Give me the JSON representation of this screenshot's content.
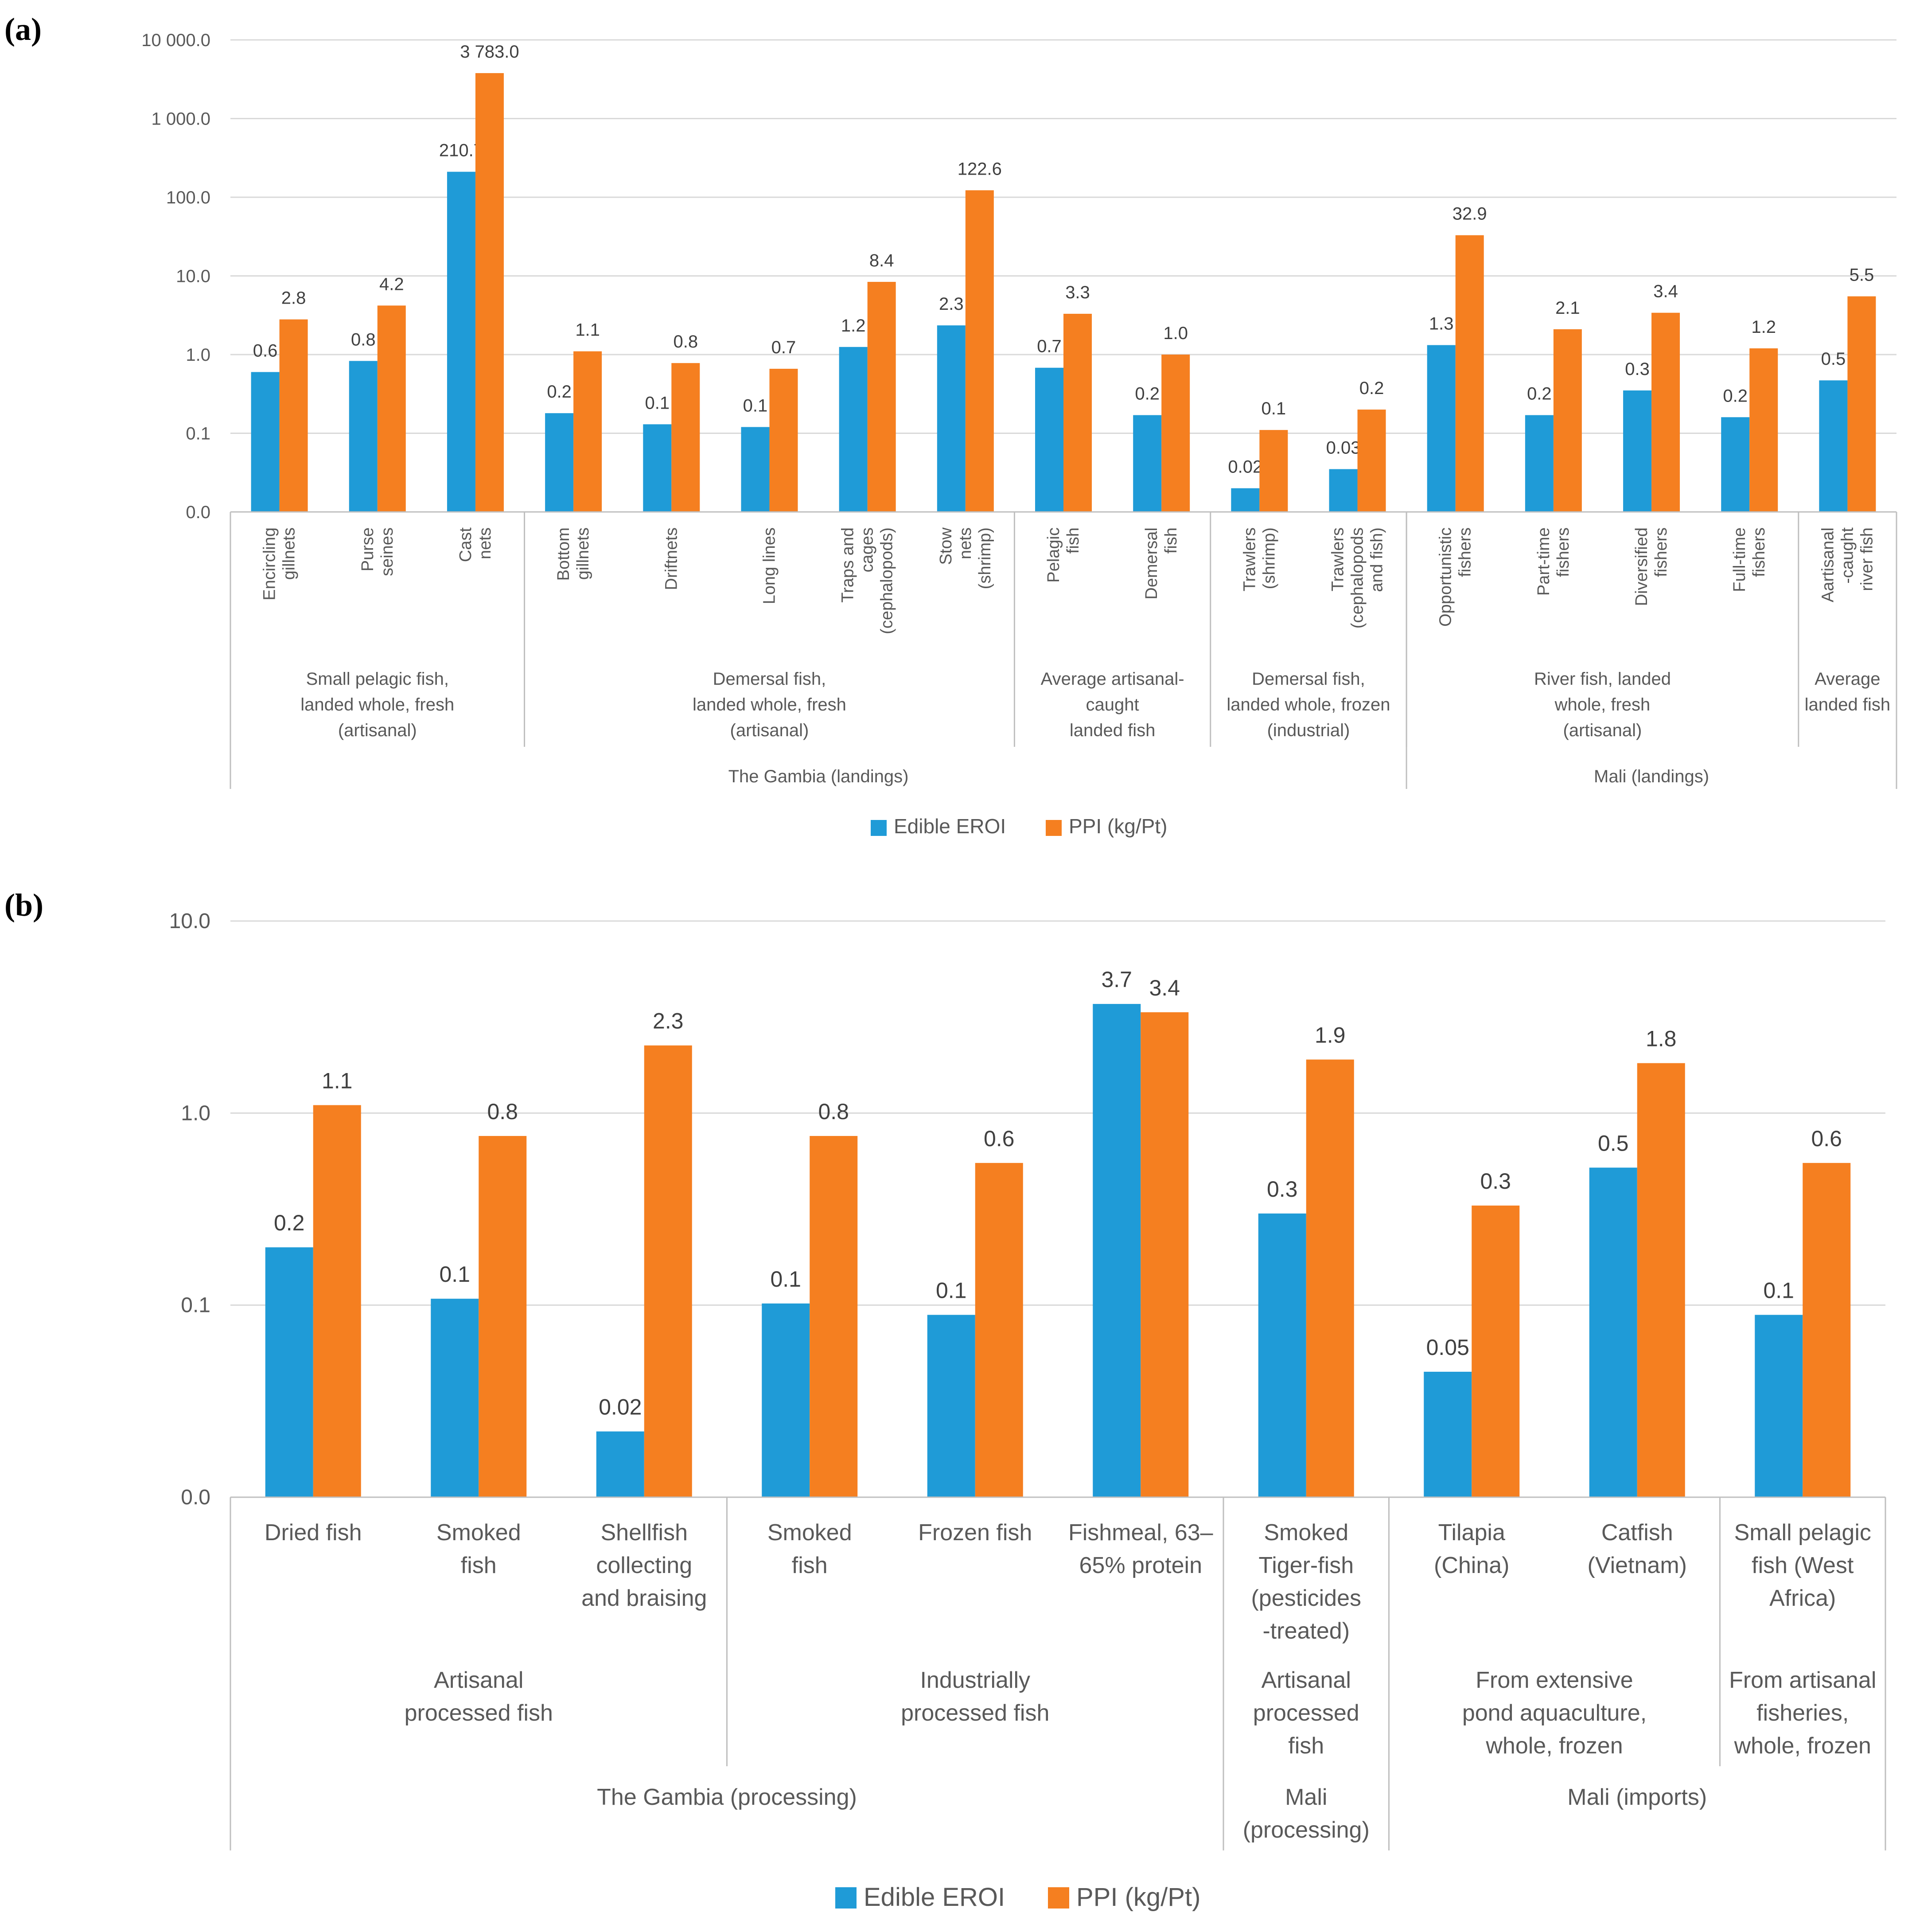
{
  "chart_data": [
    {
      "panel": "(a)",
      "type": "bar",
      "yscale": "log",
      "ylim": [
        0.01,
        10000
      ],
      "yticks": [
        {
          "value": 10000,
          "label": "10 000.0"
        },
        {
          "value": 1000,
          "label": "1 000.0"
        },
        {
          "value": 100,
          "label": "100.0"
        },
        {
          "value": 10,
          "label": "10.0"
        },
        {
          "value": 1,
          "label": "1.0"
        },
        {
          "value": 0.1,
          "label": "0.1"
        },
        {
          "value": 0.01,
          "label": "0.0"
        }
      ],
      "colors": {
        "Edible EROI": "#1f9bd7",
        "PPI (kg/Pt)": "#f57f20"
      },
      "categories": [
        {
          "lines": [
            "Encircling",
            "gillnets"
          ]
        },
        {
          "lines": [
            "Purse",
            "seines"
          ]
        },
        {
          "lines": [
            "Cast",
            "nets"
          ]
        },
        {
          "lines": [
            "Bottom",
            "gillnets"
          ]
        },
        {
          "lines": [
            "Driftnets"
          ]
        },
        {
          "lines": [
            "Long lines"
          ]
        },
        {
          "lines": [
            "Traps and",
            "cages",
            "(cephalopods)"
          ]
        },
        {
          "lines": [
            "Stow",
            "nets",
            "(shrimp)"
          ]
        },
        {
          "lines": [
            "Pelagic",
            "fish"
          ]
        },
        {
          "lines": [
            "Demersal",
            "fish"
          ]
        },
        {
          "lines": [
            "Trawlers",
            "(shrimp)"
          ]
        },
        {
          "lines": [
            "Trawlers",
            "(cephalopods",
            "and fish)"
          ]
        },
        {
          "lines": [
            "Opportunistic",
            "fishers"
          ]
        },
        {
          "lines": [
            "Part-time",
            "fishers"
          ]
        },
        {
          "lines": [
            "Diversified",
            "fishers"
          ]
        },
        {
          "lines": [
            "Full-time",
            "fishers"
          ]
        },
        {
          "lines": [
            "Aartisanal",
            "-caught",
            "river fish"
          ]
        }
      ],
      "series": [
        {
          "name": "Edible EROI",
          "values": [
            0.6,
            0.83,
            210.7,
            0.18,
            0.13,
            0.12,
            1.25,
            2.35,
            0.68,
            0.17,
            0.02,
            0.035,
            1.32,
            0.17,
            0.35,
            0.16,
            0.47
          ],
          "labels": [
            "0.6",
            "0.8",
            "210.7",
            "0.2",
            "0.1",
            "0.1",
            "1.2",
            "2.3",
            "0.7",
            "0.2",
            "0.02",
            "0.03",
            "1.3",
            "0.2",
            "0.3",
            "0.2",
            "0.5"
          ]
        },
        {
          "name": "PPI (kg/Pt)",
          "values": [
            2.8,
            4.2,
            3783,
            1.1,
            0.78,
            0.66,
            8.4,
            122.6,
            3.3,
            1.0,
            0.11,
            0.2,
            32.9,
            2.1,
            3.4,
            1.2,
            5.5
          ],
          "labels": [
            "2.8",
            "4.2",
            "3 783.0",
            "1.1",
            "0.8",
            "0.7",
            "8.4",
            "122.6",
            "3.3",
            "1.0",
            "0.1",
            "0.2",
            "32.9",
            "2.1",
            "3.4",
            "1.2",
            "5.5"
          ]
        }
      ],
      "groups": [
        {
          "lines": [
            "Small pelagic fish,",
            "landed whole, fresh",
            "(artisanal)"
          ],
          "start": 0,
          "end": 2
        },
        {
          "lines": [
            "Demersal fish,",
            "landed whole, fresh",
            "(artisanal)"
          ],
          "start": 3,
          "end": 7
        },
        {
          "lines": [
            "Average artisanal-",
            "caught",
            "landed fish"
          ],
          "start": 8,
          "end": 9
        },
        {
          "lines": [
            "Demersal fish,",
            "landed  whole, frozen",
            "(industrial)"
          ],
          "start": 10,
          "end": 11
        },
        {
          "lines": [
            "River fish, landed",
            "whole, fresh",
            "(artisanal)"
          ],
          "start": 12,
          "end": 15
        },
        {
          "lines": [
            "Average",
            "landed fish"
          ],
          "start": 16,
          "end": 16
        }
      ],
      "supergroups": [
        {
          "label": "The Gambia (landings)",
          "start": 0,
          "end": 11
        },
        {
          "label": "Mali (landings)",
          "start": 12,
          "end": 16
        }
      ]
    },
    {
      "panel": "(b)",
      "type": "bar",
      "yscale": "log",
      "ylim": [
        0.01,
        10
      ],
      "yticks": [
        {
          "value": 10,
          "label": "10.0"
        },
        {
          "value": 1,
          "label": "1.0"
        },
        {
          "value": 0.1,
          "label": "0.1"
        },
        {
          "value": 0.01,
          "label": "0.0"
        }
      ],
      "colors": {
        "Edible EROI": "#1f9bd7",
        "PPI (kg/Pt)": "#f57f20"
      },
      "categories": [
        {
          "lines": [
            "Dried fish"
          ]
        },
        {
          "lines": [
            "Smoked",
            "fish"
          ]
        },
        {
          "lines": [
            "Shellfish",
            "collecting",
            "and braising"
          ]
        },
        {
          "lines": [
            "Smoked",
            "fish"
          ]
        },
        {
          "lines": [
            "Frozen fish"
          ]
        },
        {
          "lines": [
            "Fishmeal, 63–",
            "65% protein"
          ]
        },
        {
          "lines": [
            "Smoked",
            "Tiger-fish",
            "(pesticides",
            "-treated)"
          ]
        },
        {
          "lines": [
            "Tilapia",
            "(China)"
          ]
        },
        {
          "lines": [
            "Catfish",
            "(Vietnam)"
          ]
        },
        {
          "lines": [
            "Small pelagic",
            "fish (West",
            "Africa)"
          ]
        }
      ],
      "series": [
        {
          "name": "Edible EROI",
          "values": [
            0.2,
            0.108,
            0.022,
            0.102,
            0.089,
            3.7,
            0.3,
            0.045,
            0.52,
            0.089
          ],
          "labels": [
            "0.2",
            "0.1",
            "0.02",
            "0.1",
            "0.1",
            "3.7",
            "0.3",
            "0.05",
            "0.5",
            "0.1"
          ]
        },
        {
          "name": "PPI (kg/Pt)",
          "values": [
            1.1,
            0.76,
            2.25,
            0.76,
            0.55,
            3.35,
            1.9,
            0.33,
            1.82,
            0.55
          ],
          "labels": [
            "1.1",
            "0.8",
            "2.3",
            "0.8",
            "0.6",
            "3.4",
            "1.9",
            "0.3",
            "1.8",
            "0.6"
          ]
        }
      ],
      "groups": [
        {
          "lines": [
            "Artisanal",
            "processed fish"
          ],
          "start": 0,
          "end": 2
        },
        {
          "lines": [
            "Industrially",
            "processed fish"
          ],
          "start": 3,
          "end": 5
        },
        {
          "lines": [
            "Artisanal",
            "processed",
            "fish"
          ],
          "start": 6,
          "end": 6
        },
        {
          "lines": [
            "From extensive",
            "pond aquaculture,",
            "whole, frozen"
          ],
          "start": 7,
          "end": 8
        },
        {
          "lines": [
            "From artisanal",
            "fisheries,",
            "whole, frozen"
          ],
          "start": 9,
          "end": 9
        }
      ],
      "supergroups": [
        {
          "lines": [
            "The Gambia (processing)"
          ],
          "start": 0,
          "end": 5
        },
        {
          "lines": [
            "Mali",
            "(processing)"
          ],
          "start": 6,
          "end": 6
        },
        {
          "lines": [
            "Mali (imports)"
          ],
          "start": 7,
          "end": 9
        }
      ]
    }
  ]
}
